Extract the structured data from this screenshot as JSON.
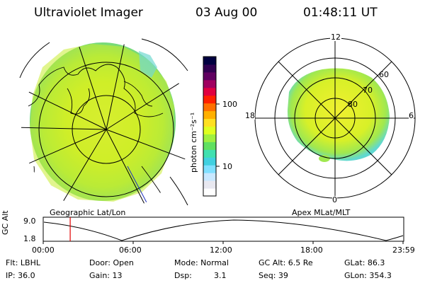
{
  "header": {
    "instrument": "Ultraviolet Imager",
    "date": "03 Aug 00",
    "time": "01:48:11 UT"
  },
  "colorbar": {
    "label": "photon cm⁻²s⁻¹",
    "ticks": [
      "100",
      "10"
    ],
    "colors": [
      "#ffffff",
      "#e8e8f0",
      "#c8e8ff",
      "#80e0ff",
      "#40d0e0",
      "#40e0b0",
      "#60e060",
      "#a0f040",
      "#e0ff20",
      "#ffe020",
      "#ffb000",
      "#ff7000",
      "#ff2000",
      "#e00040",
      "#a00060",
      "#600060",
      "#300050",
      "#000040"
    ]
  },
  "left_map": {
    "caption": "Geographic Lat/Lon"
  },
  "right_map": {
    "caption": "Apex MLat/MLT",
    "mlt_labels": {
      "top": "12",
      "left": "18",
      "right": "6",
      "bottom": "0"
    },
    "lat_labels": [
      "60",
      "70",
      "80"
    ]
  },
  "timeline": {
    "ylabel": "GC Alt",
    "ymax": "9.0",
    "ymin": "1.8",
    "ticks": [
      "00:00",
      "06:00",
      "12:00",
      "18:00",
      "23:59"
    ],
    "current_fraction": 0.075
  },
  "footer": {
    "flt": "Flt: LBHL",
    "ip": "IP: 36.0",
    "door": "Door: Open",
    "gain": "Gain: 13",
    "mode": "Mode: Normal",
    "dsp_label": "Dsp:",
    "dsp_value": "3.1",
    "gcalt": "GC Alt: 6.5 Re",
    "seq": "Seq: 39",
    "glat": "GLat:  86.3",
    "glon": "GLon: 354.3"
  }
}
